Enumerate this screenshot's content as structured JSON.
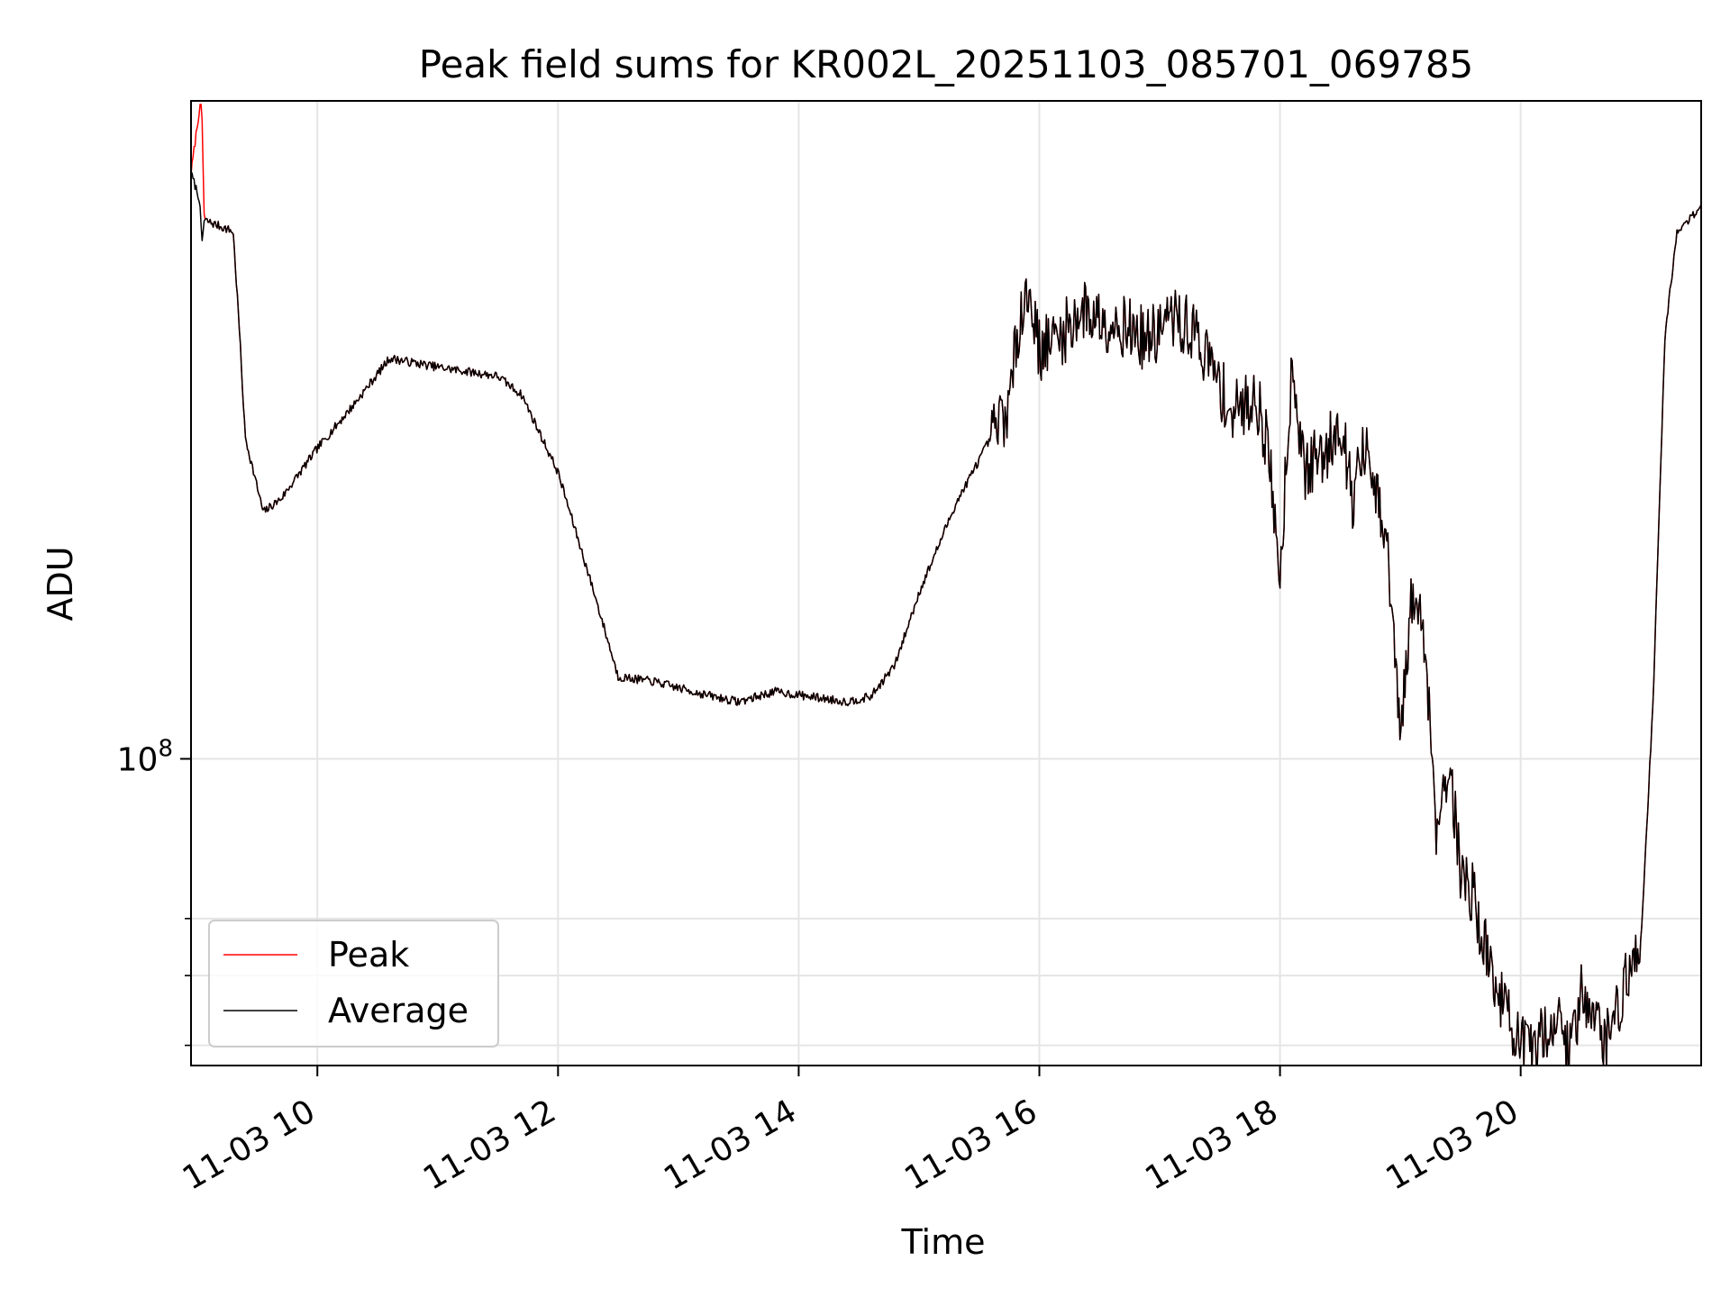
{
  "chart_data": {
    "type": "line",
    "title": "Peak field sums for KR002L_20251103_085701_069785",
    "xlabel": "Time",
    "ylabel": "ADU",
    "y_scale": "log",
    "xlim": [
      "2025-11-03 08:57",
      "2025-11-03 21:30"
    ],
    "ylim": [
      37500000,
      820000000
    ],
    "x_ticks": [
      "11-03 10",
      "11-03 12",
      "11-03 14",
      "11-03 16",
      "11-03 18",
      "11-03 20"
    ],
    "x_tick_hours": [
      10,
      12,
      14,
      16,
      18,
      20
    ],
    "y_major_ticks": [
      {
        "value": 100000000,
        "base": "10",
        "exp": "8"
      }
    ],
    "y_minor_ticks": [
      40000000,
      50000000,
      60000000
    ],
    "grid": true,
    "legend_position": "lower-left",
    "series": [
      {
        "name": "Peak",
        "color": "#ff0000",
        "hours": [
          8.95,
          9.02,
          9.04,
          9.06,
          9.3,
          9.35,
          9.4,
          9.55,
          9.7,
          10.0,
          10.3,
          10.6,
          11.0,
          11.5,
          11.7,
          12.0,
          12.3,
          12.5,
          12.8,
          13.2,
          13.5,
          13.8,
          14.1,
          14.4,
          14.6,
          14.8,
          15.0,
          15.3,
          15.6,
          15.75,
          15.85,
          15.93,
          16.0,
          16.2,
          16.35,
          16.5,
          16.7,
          16.9,
          17.1,
          17.3,
          17.5,
          17.6,
          17.7,
          17.8,
          17.9,
          18.0,
          18.1,
          18.2,
          18.3,
          18.4,
          18.5,
          18.6,
          18.7,
          18.8,
          18.9,
          19.0,
          19.1,
          19.2,
          19.3,
          19.4,
          19.5,
          19.6,
          19.7,
          19.8,
          19.9,
          20.0,
          20.1,
          20.2,
          20.3,
          20.4,
          20.5,
          20.6,
          20.7,
          20.8,
          20.9,
          21.0,
          21.1,
          21.2,
          21.3,
          21.4,
          21.5
        ],
        "values": [
          650000000,
          800000000,
          800000000,
          560000000,
          540000000,
          400000000,
          280000000,
          220000000,
          230000000,
          270000000,
          310000000,
          360000000,
          350000000,
          340000000,
          320000000,
          250000000,
          170000000,
          130000000,
          128000000,
          123000000,
          120000000,
          124000000,
          122000000,
          120000000,
          122000000,
          135000000,
          170000000,
          225000000,
          280000000,
          310000000,
          430000000,
          440000000,
          370000000,
          390000000,
          420000000,
          410000000,
          400000000,
          380000000,
          410000000,
          390000000,
          330000000,
          300000000,
          310000000,
          320000000,
          270000000,
          180000000,
          360000000,
          250000000,
          260000000,
          270000000,
          300000000,
          230000000,
          270000000,
          230000000,
          190000000,
          105000000,
          170000000,
          150000000,
          80000000,
          100000000,
          70000000,
          65000000,
          55000000,
          48000000,
          44000000,
          40000000,
          38500000,
          42000000,
          44000000,
          39000000,
          47000000,
          46000000,
          40000000,
          45000000,
          50000000,
          56000000,
          120000000,
          390000000,
          540000000,
          560000000,
          590000000
        ],
        "sample_count": 1500
      },
      {
        "name": "Average",
        "color": "#000000",
        "hours": [
          8.95,
          9.02,
          9.04,
          9.06,
          9.3,
          9.35,
          9.4,
          9.55,
          9.7,
          10.0,
          10.3,
          10.6,
          11.0,
          11.5,
          11.7,
          12.0,
          12.3,
          12.5,
          12.8,
          13.2,
          13.5,
          13.8,
          14.1,
          14.4,
          14.6,
          14.8,
          15.0,
          15.3,
          15.6,
          15.75,
          15.85,
          15.93,
          16.0,
          16.2,
          16.35,
          16.5,
          16.7,
          16.9,
          17.1,
          17.3,
          17.5,
          17.6,
          17.7,
          17.8,
          17.9,
          18.0,
          18.1,
          18.2,
          18.3,
          18.4,
          18.5,
          18.6,
          18.7,
          18.8,
          18.9,
          19.0,
          19.1,
          19.2,
          19.3,
          19.4,
          19.5,
          19.6,
          19.7,
          19.8,
          19.9,
          20.0,
          20.1,
          20.2,
          20.3,
          20.4,
          20.5,
          20.6,
          20.7,
          20.8,
          20.9,
          21.0,
          21.1,
          21.2,
          21.3,
          21.4,
          21.5
        ],
        "values": [
          650000000,
          600000000,
          520000000,
          560000000,
          540000000,
          400000000,
          280000000,
          220000000,
          230000000,
          270000000,
          310000000,
          360000000,
          350000000,
          340000000,
          320000000,
          250000000,
          170000000,
          130000000,
          128000000,
          123000000,
          120000000,
          124000000,
          122000000,
          120000000,
          122000000,
          135000000,
          170000000,
          225000000,
          280000000,
          310000000,
          430000000,
          440000000,
          370000000,
          390000000,
          420000000,
          410000000,
          400000000,
          380000000,
          410000000,
          390000000,
          330000000,
          300000000,
          310000000,
          320000000,
          270000000,
          180000000,
          360000000,
          250000000,
          260000000,
          270000000,
          300000000,
          230000000,
          270000000,
          230000000,
          190000000,
          105000000,
          170000000,
          150000000,
          80000000,
          100000000,
          70000000,
          65000000,
          55000000,
          48000000,
          44000000,
          40000000,
          38500000,
          42000000,
          44000000,
          39000000,
          47000000,
          46000000,
          40000000,
          45000000,
          50000000,
          56000000,
          120000000,
          390000000,
          540000000,
          560000000,
          590000000
        ],
        "sample_count": 1500
      }
    ]
  }
}
